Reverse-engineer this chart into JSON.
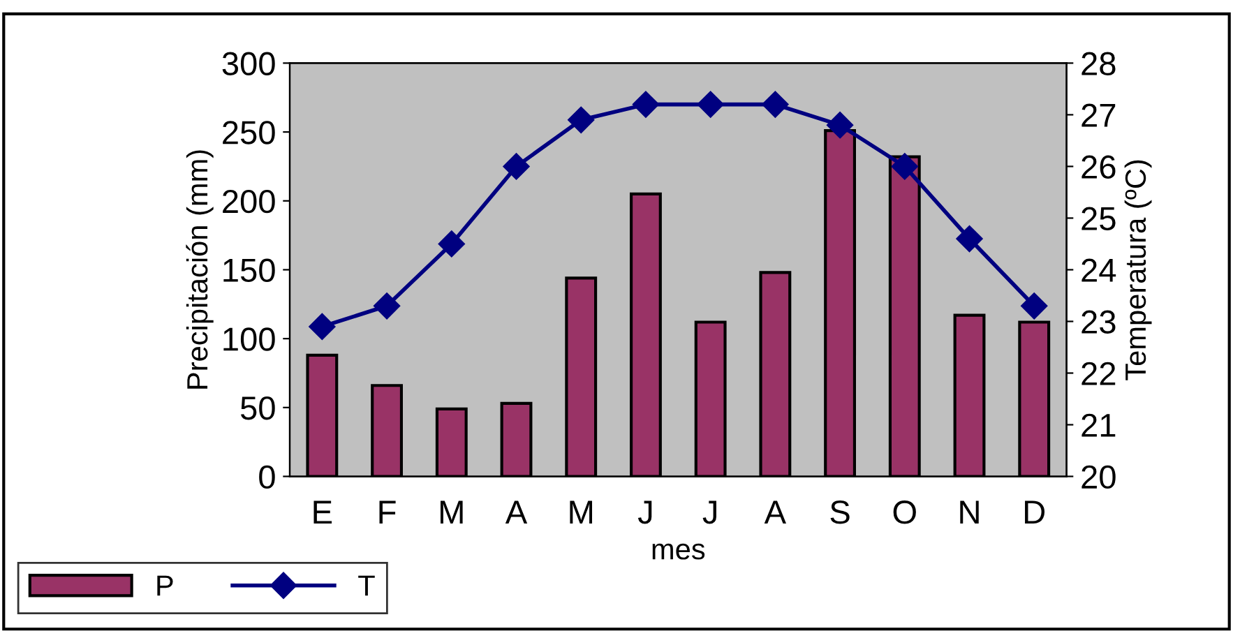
{
  "chart_data": {
    "type": "bar",
    "xlabel": "mes",
    "ylabel": "Precipitación (mm)",
    "y2label": "Temperatura (ºC)",
    "categories": [
      "E",
      "F",
      "M",
      "A",
      "M",
      "J",
      "J",
      "A",
      "S",
      "O",
      "N",
      "D"
    ],
    "series": [
      {
        "name": "P",
        "color": "#993366",
        "values": [
          88,
          66,
          49,
          53,
          144,
          205,
          112,
          148,
          251,
          232,
          117,
          112
        ]
      },
      {
        "name": "T",
        "type": "line",
        "axis": "y2",
        "color": "#000080",
        "marker": "diamond",
        "values": [
          22.9,
          23.3,
          24.5,
          26.0,
          26.9,
          27.2,
          27.2,
          27.2,
          26.8,
          26.0,
          24.6,
          23.3
        ]
      }
    ],
    "ylim": [
      0,
      300
    ],
    "yticks": [
      0,
      50,
      100,
      150,
      200,
      250,
      300
    ],
    "y2lim": [
      20,
      28
    ],
    "y2ticks": [
      20,
      21,
      22,
      23,
      24,
      25,
      26,
      27,
      28
    ],
    "grid": false,
    "legend": "bottom left"
  }
}
